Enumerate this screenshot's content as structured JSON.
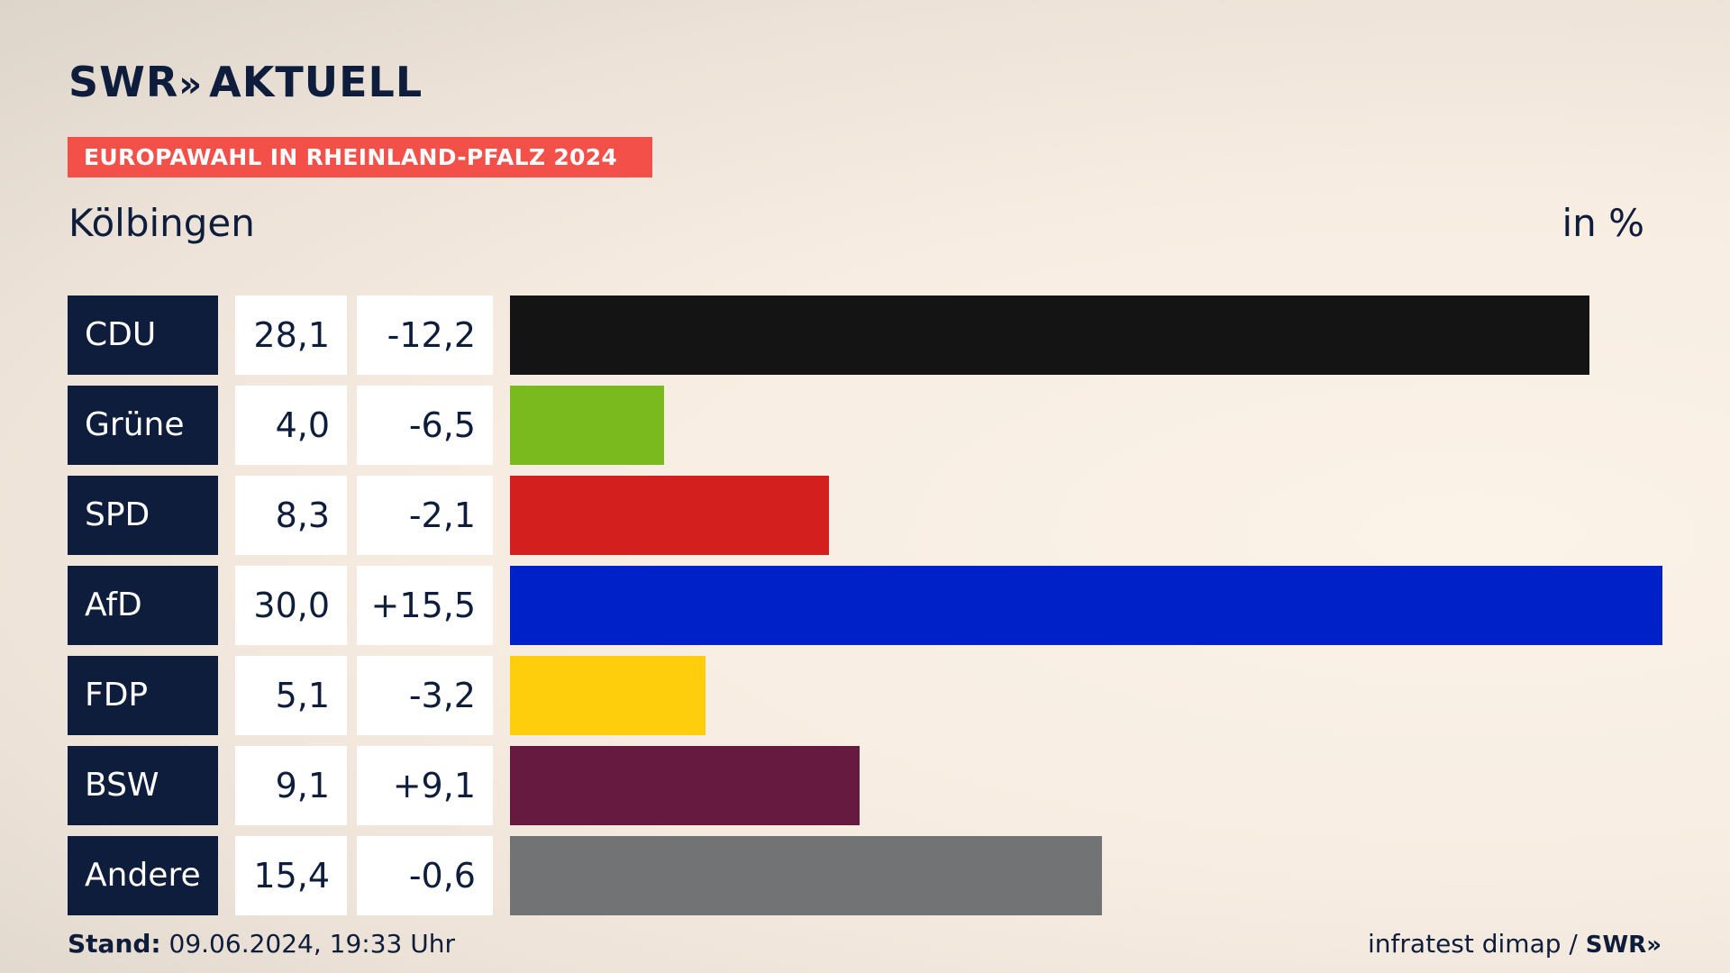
{
  "header": {
    "logo_text": "SWR",
    "logo_chevrons": "»",
    "logo_suffix": "AKTUELL",
    "badge": "EUROPAWAHL IN RHEINLAND-PFALZ 2024",
    "place": "Kölbingen",
    "unit": "in %"
  },
  "colors": {
    "navy": "#0e1d3c",
    "badge": "#f4504a",
    "CDU": "#141414",
    "Grüne": "#7aba1f",
    "SPD": "#d41f1f",
    "AfD": "#0021c7",
    "FDP": "#fecd0c",
    "BSW": "#661a40",
    "Andere": "#727375"
  },
  "chart_data": {
    "type": "bar",
    "orientation": "horizontal",
    "title": "Kölbingen",
    "unit": "in %",
    "categories": [
      "CDU",
      "Grüne",
      "SPD",
      "AfD",
      "FDP",
      "BSW",
      "Andere"
    ],
    "values": [
      28.1,
      4.0,
      8.3,
      30.0,
      5.1,
      9.1,
      15.4
    ],
    "value_labels": [
      "28,1",
      "4,0",
      "8,3",
      "30,0",
      "5,1",
      "9,1",
      "15,4"
    ],
    "changes": [
      -12.2,
      -6.5,
      -2.1,
      15.5,
      -3.2,
      9.1,
      -0.6
    ],
    "change_labels": [
      "-12,2",
      "-6,5",
      "-2,1",
      "+15,5",
      "-3,2",
      "+9,1",
      "-0,6"
    ],
    "xlim": [
      0,
      30.0
    ]
  },
  "footer": {
    "stand_label": "Stand:",
    "stand_value": "09.06.2024, 19:33 Uhr",
    "source": "infratest dimap /",
    "source_logo": "SWR»"
  }
}
